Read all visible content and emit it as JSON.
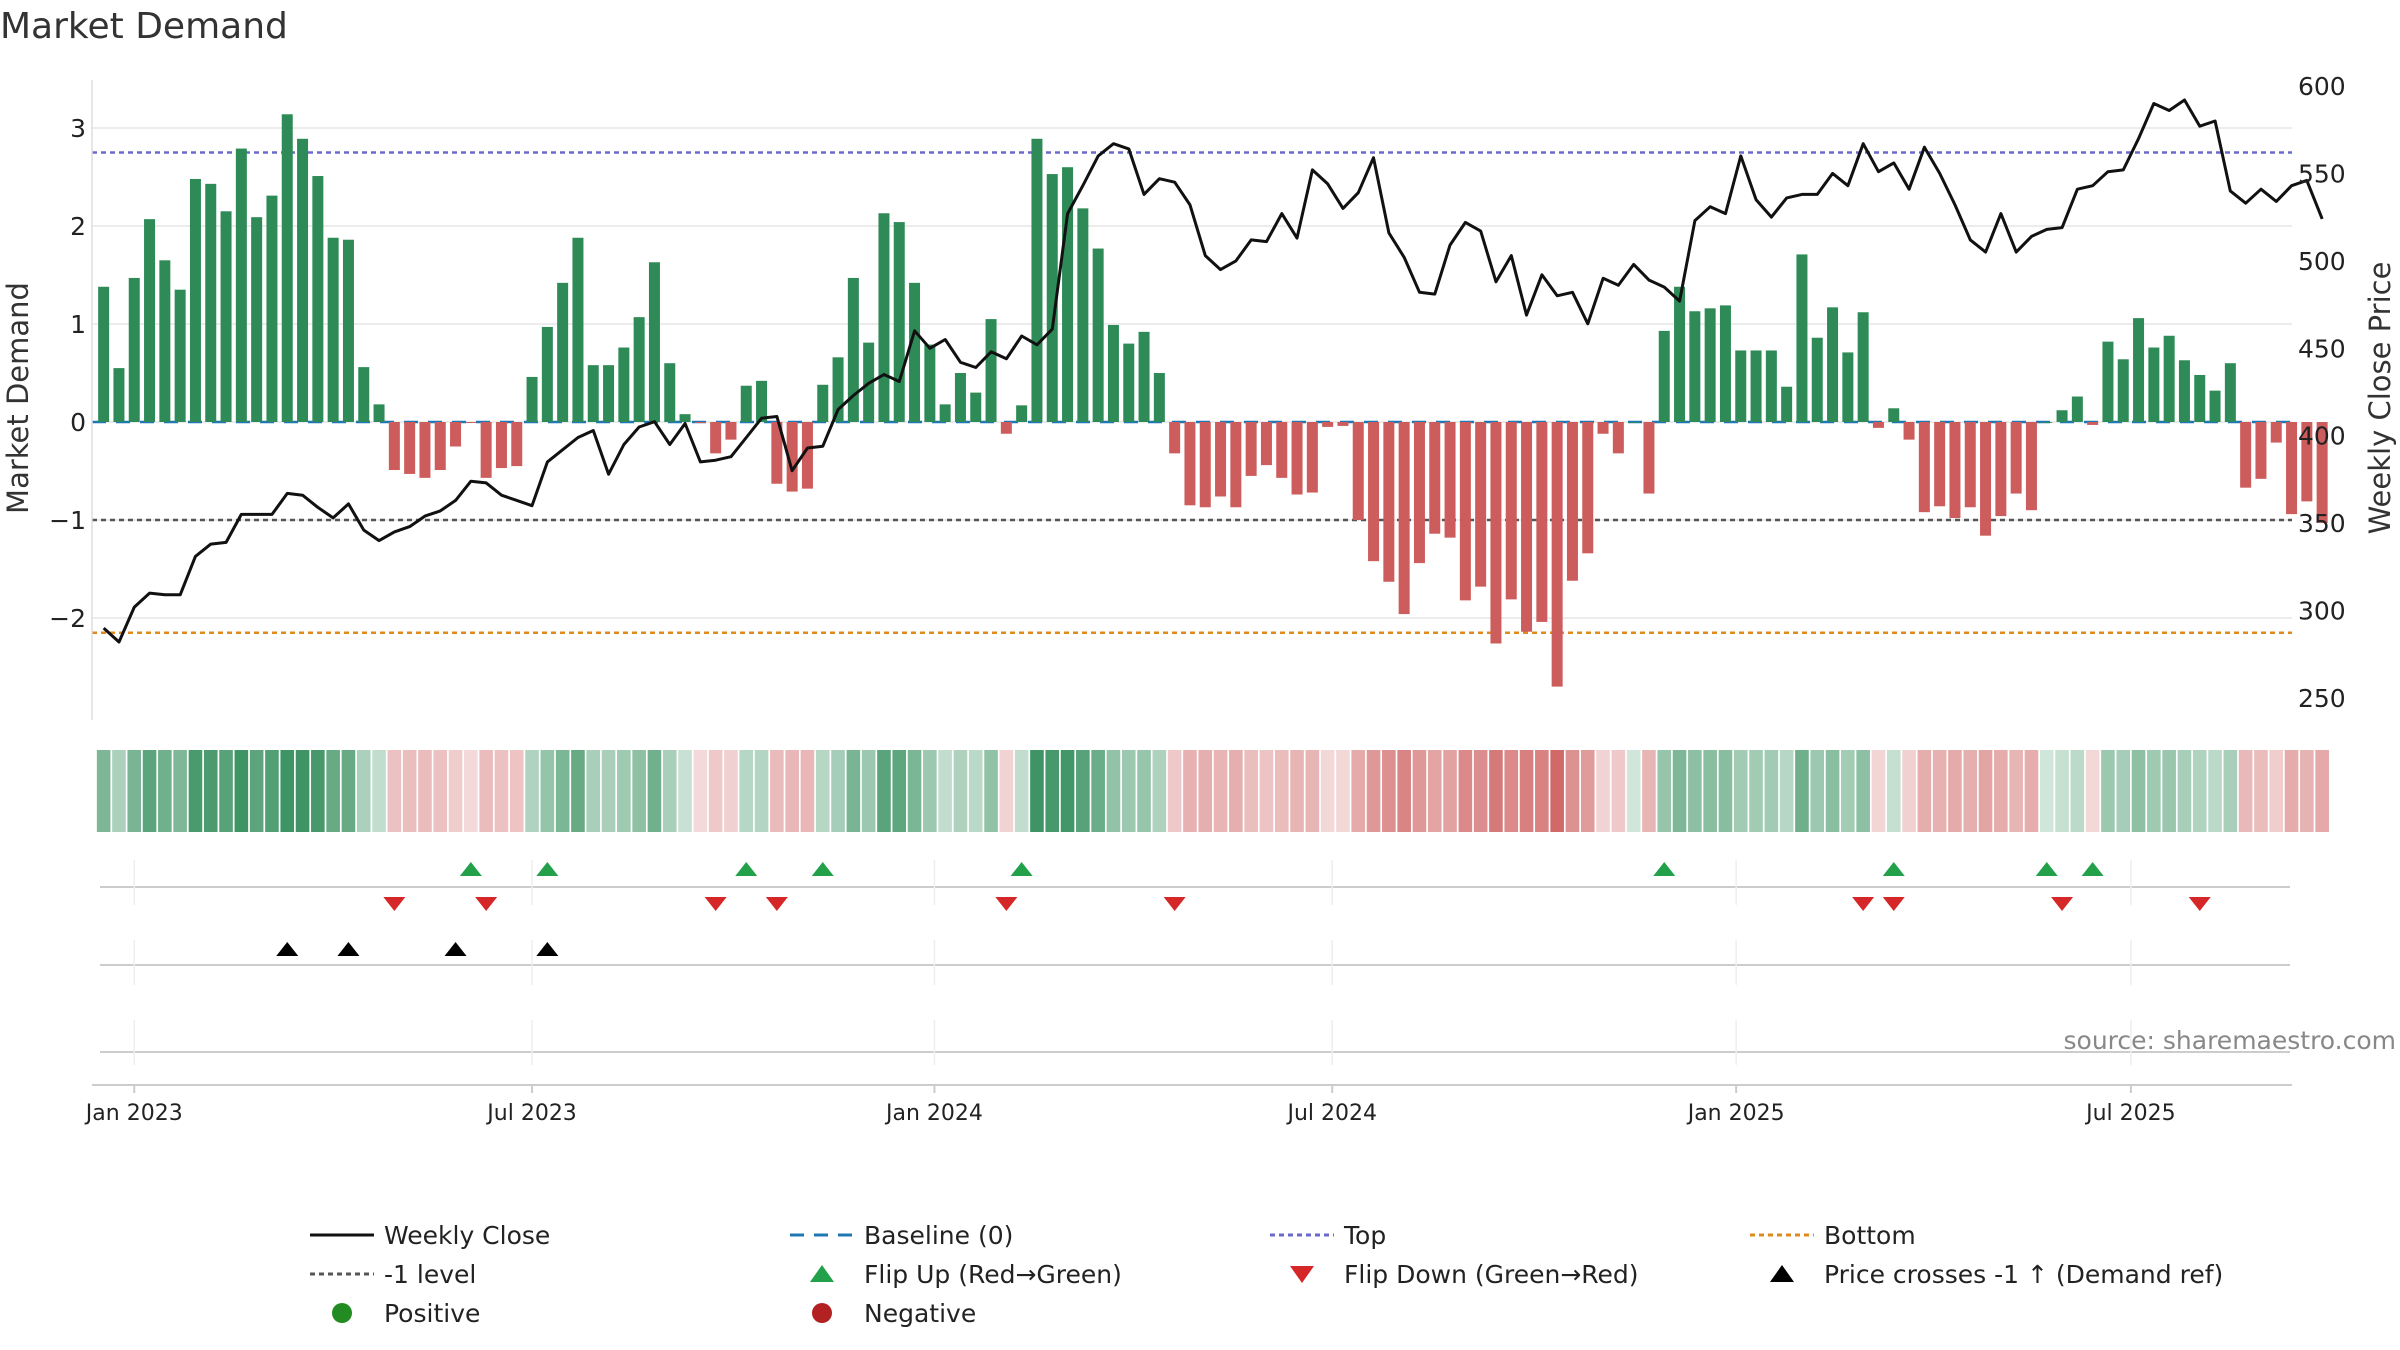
{
  "chart_data": {
    "type": "bar+line",
    "title": "Market Demand",
    "ylabel_left": "Market Demand",
    "ylabel_right": "Weekly Close Price",
    "ylim_left": [
      -3.0,
      3.35
    ],
    "ylim_right": [
      232,
      600
    ],
    "yticks_left": [
      3,
      2,
      1,
      0,
      -1,
      -2
    ],
    "ytick_labels_left": [
      "3",
      "2",
      "1",
      "0",
      "−1",
      "−2"
    ],
    "yticks_right": [
      600,
      550,
      500,
      450,
      400,
      350,
      300,
      250
    ],
    "date_ticks": [
      {
        "label": "Jan 2023",
        "week": 2
      },
      {
        "label": "Jul 2023",
        "week": 28
      },
      {
        "label": "Jan 2024",
        "week": 54.3
      },
      {
        "label": "Jul 2024",
        "week": 80.3
      },
      {
        "label": "Jan 2025",
        "week": 106.7
      },
      {
        "label": "Jul 2025",
        "week": 132.5
      }
    ],
    "levels": {
      "top": 2.75,
      "minus_one": -1.0,
      "bottom": -2.15
    },
    "demand": [
      1.38,
      0.55,
      1.47,
      2.07,
      1.65,
      1.35,
      2.48,
      2.43,
      2.15,
      2.79,
      2.09,
      2.31,
      3.14,
      2.89,
      2.51,
      1.88,
      1.86,
      0.56,
      0.18,
      -0.49,
      -0.53,
      -0.57,
      -0.49,
      -0.25,
      -0.01,
      -0.57,
      -0.47,
      -0.45,
      0.46,
      0.97,
      1.42,
      1.88,
      0.58,
      0.58,
      0.76,
      1.07,
      1.63,
      0.6,
      0.08,
      -0.01,
      -0.32,
      -0.18,
      0.37,
      0.42,
      -0.63,
      -0.71,
      -0.68,
      0.38,
      0.66,
      1.47,
      0.81,
      2.13,
      2.04,
      1.42,
      0.79,
      0.18,
      0.5,
      0.3,
      1.05,
      -0.12,
      0.17,
      2.89,
      2.53,
      2.6,
      2.18,
      1.77,
      0.99,
      0.8,
      0.92,
      0.5,
      -0.32,
      -0.85,
      -0.87,
      -0.76,
      -0.87,
      -0.55,
      -0.44,
      -0.57,
      -0.74,
      -0.72,
      -0.05,
      -0.04,
      -1.0,
      -1.42,
      -1.63,
      -1.96,
      -1.44,
      -1.14,
      -1.18,
      -1.82,
      -1.68,
      -2.26,
      -1.81,
      -2.14,
      -2.04,
      -2.7,
      -1.62,
      -1.34,
      -0.12,
      -0.32,
      0.0,
      -0.73,
      0.93,
      1.38,
      1.13,
      1.16,
      1.19,
      0.73,
      0.73,
      0.73,
      0.36,
      1.71,
      0.86,
      1.17,
      0.71,
      1.12,
      -0.06,
      0.14,
      -0.18,
      -0.92,
      -0.86,
      -0.98,
      -0.87,
      -1.16,
      -0.96,
      -0.73,
      -0.9,
      0.0,
      0.12,
      0.26,
      -0.03,
      0.82,
      0.64,
      1.06,
      0.76,
      0.88,
      0.63,
      0.48,
      0.32,
      0.6,
      -0.67,
      -0.58,
      -0.21,
      -0.94,
      -0.81,
      -1.03
    ],
    "close": [
      290,
      282,
      302,
      310,
      309,
      309,
      331,
      338,
      339,
      355,
      355,
      355,
      367,
      366,
      359,
      353,
      361,
      346,
      340,
      345,
      348,
      354,
      357,
      363,
      374,
      373,
      366,
      363,
      360,
      385,
      392,
      399,
      403,
      378,
      395,
      405,
      408,
      395,
      407,
      385,
      386,
      388,
      399,
      410,
      411,
      380,
      393,
      394,
      415,
      423,
      430,
      435,
      431,
      460,
      450,
      455,
      442,
      439,
      448,
      444,
      457,
      452,
      461,
      527,
      543,
      560,
      567,
      564,
      538,
      547,
      545,
      532,
      503,
      495,
      500,
      512,
      511,
      527,
      513,
      552,
      544,
      530,
      539,
      559,
      516,
      502,
      482,
      481,
      509,
      522,
      517,
      488,
      503,
      469,
      492,
      480,
      482,
      464,
      490,
      486,
      498,
      489,
      485,
      477,
      523,
      531,
      527,
      560,
      535,
      525,
      536,
      538,
      538,
      550,
      543,
      567,
      551,
      556,
      541,
      565,
      550,
      532,
      512,
      505,
      527,
      505,
      514,
      518,
      519,
      541,
      543,
      551,
      552,
      570,
      590,
      586,
      592,
      577,
      580,
      540,
      533,
      541,
      534,
      543,
      546,
      524
    ]
  },
  "signals": {
    "flip_up_weeks": [
      24,
      29,
      42,
      47,
      60,
      102,
      117,
      127,
      130
    ],
    "flip_down_weeks": [
      19,
      25,
      40,
      44,
      59,
      70,
      115,
      117,
      128,
      137
    ],
    "price_cross_weeks": [
      12,
      16,
      23,
      29
    ]
  },
  "legend": [
    {
      "label": "Weekly Close",
      "kind": "line-black"
    },
    {
      "label": "Baseline (0)",
      "kind": "dash-blue"
    },
    {
      "label": "Top",
      "kind": "dot-purple"
    },
    {
      "label": "Bottom",
      "kind": "dot-orange"
    },
    {
      "label": "-1 level",
      "kind": "dot-gray"
    },
    {
      "label": "Flip Up (Red→Green)",
      "kind": "tri-up-green"
    },
    {
      "label": "Flip Down (Green→Red)",
      "kind": "tri-down-red"
    },
    {
      "label": "Price crosses -1 ↑ (Demand ref)",
      "kind": "tri-up-black"
    },
    {
      "label": "Positive",
      "kind": "dot-green"
    },
    {
      "label": "Negative",
      "kind": "dot-red"
    }
  ],
  "source": "source: sharemaestro.com",
  "colors": {
    "positive": "#2e8b57",
    "negative": "#cd5c5c",
    "close_line": "#111111",
    "baseline": "#1f77b4",
    "top": "#6a6acd",
    "bottom": "#e08a1e",
    "minus_one": "#555555",
    "flip_up": "#22a04a",
    "flip_down": "#d62728",
    "price_cross": "#000000",
    "legend_positive": "#228b22",
    "legend_negative": "#b22222"
  }
}
